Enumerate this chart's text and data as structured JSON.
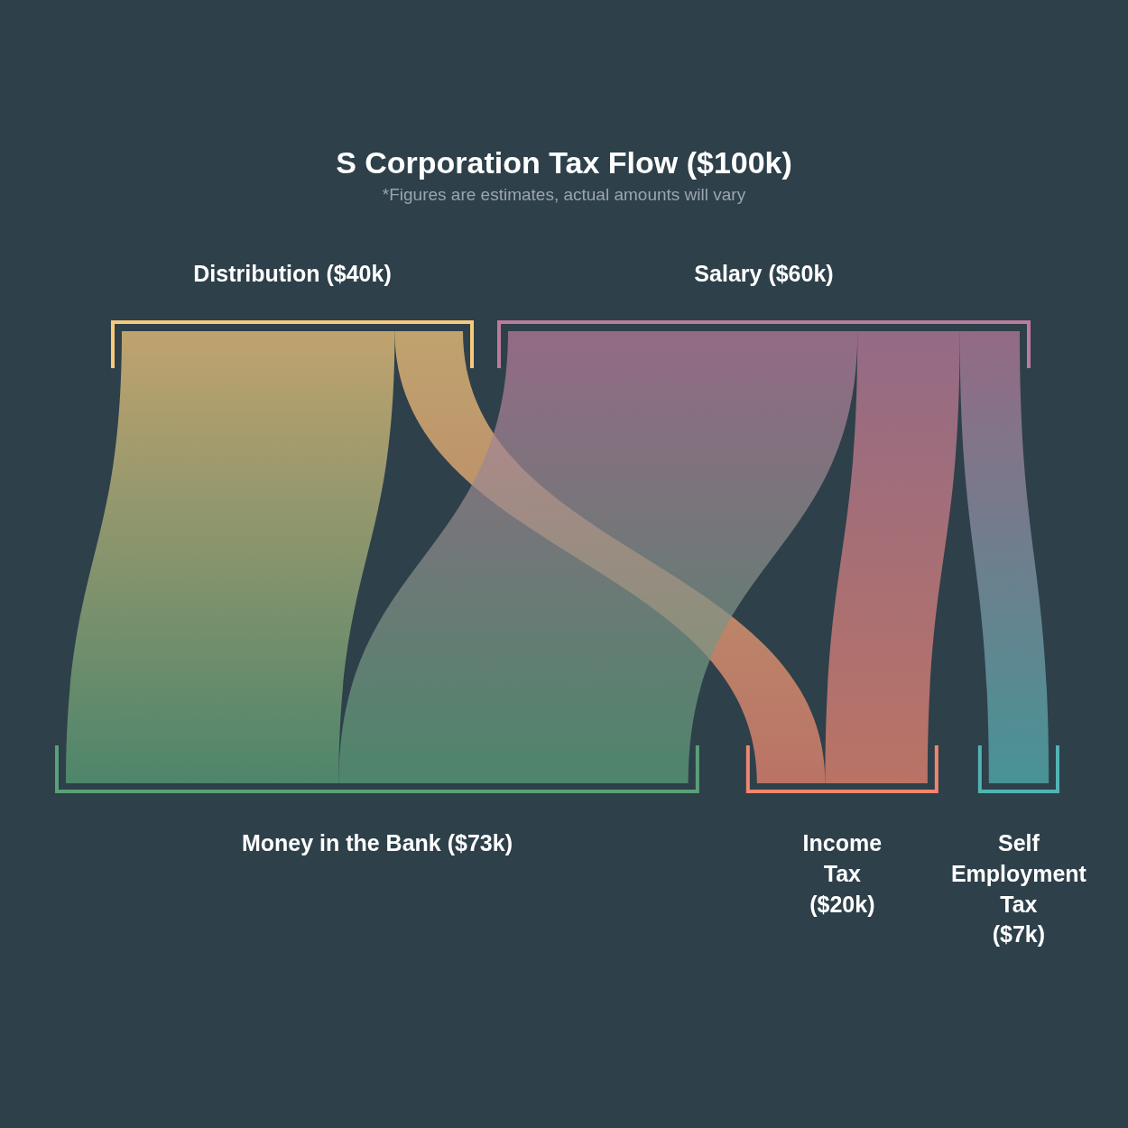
{
  "chart_data": {
    "type": "other",
    "title": "S Corporation Tax Flow ($100k)",
    "subtitle": "*Figures are estimates, actual amounts will vary",
    "categories": [
      "Distribution",
      "Salary",
      "Money in the Bank",
      "Income Tax",
      "Self Employment Tax"
    ],
    "values": [
      40,
      60,
      73,
      20,
      7
    ],
    "value_labels": [
      "($40k)",
      "($60k)",
      "($73k)",
      "($20k)",
      "($7k)"
    ],
    "colors": [
      "#f8c97c",
      "#bb7b9c",
      "#5aa078",
      "#f08770",
      "#52b3b3"
    ]
  }
}
